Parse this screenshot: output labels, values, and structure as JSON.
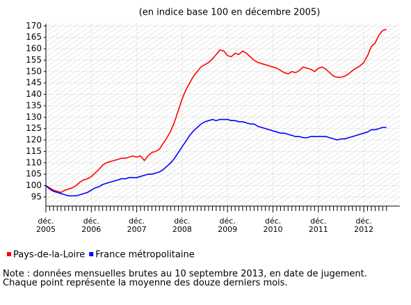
{
  "chart_data": {
    "type": "line",
    "title": "(en indice base 100 en décembre 2005)",
    "categories": [
      "déc. 2005",
      null,
      null,
      null,
      null,
      null,
      null,
      null,
      null,
      null,
      null,
      null,
      "déc. 2006",
      null,
      null,
      null,
      null,
      null,
      null,
      null,
      null,
      null,
      null,
      null,
      "déc. 2007",
      null,
      null,
      null,
      null,
      null,
      null,
      null,
      null,
      null,
      null,
      null,
      "déc. 2008",
      null,
      null,
      null,
      null,
      null,
      null,
      null,
      null,
      null,
      null,
      null,
      "déc. 2009",
      null,
      null,
      null,
      null,
      null,
      null,
      null,
      null,
      null,
      null,
      null,
      "déc. 2010",
      null,
      null,
      null,
      null,
      null,
      null,
      null,
      null,
      null,
      null,
      null,
      "déc. 2011",
      null,
      null,
      null,
      null,
      null,
      null,
      null,
      null,
      null,
      null,
      null,
      "déc. 2012",
      null,
      null,
      null,
      null,
      null,
      null
    ],
    "series": [
      {
        "name": "Pays-de-la-Loire",
        "color": "#ff0000",
        "values": [
          100,
          99,
          98,
          97.5,
          97,
          98,
          98.5,
          99,
          100,
          101.5,
          102.5,
          103,
          104,
          105.5,
          107,
          109,
          110,
          110.5,
          111,
          111.5,
          112,
          112,
          112.5,
          113,
          112.5,
          113,
          111,
          113,
          114.5,
          115,
          116,
          118.5,
          121,
          124,
          128,
          133,
          138,
          142,
          145,
          148,
          150,
          152,
          153,
          154,
          155.5,
          157.5,
          159.5,
          159,
          157,
          156.5,
          158,
          157.5,
          159,
          158,
          156.5,
          155,
          154,
          153.5,
          153,
          152.5,
          152,
          151.5,
          150.5,
          149.5,
          149,
          150,
          149.5,
          150.5,
          152,
          151.5,
          151,
          150,
          151.5,
          152,
          151,
          149.5,
          148,
          147.5,
          147.5,
          148,
          149,
          150.5,
          151.5,
          152.5,
          154,
          157,
          161,
          162.5,
          166,
          168,
          168.5
        ]
      },
      {
        "name": "France métropolitaine",
        "color": "#0000ff",
        "values": [
          100,
          98.5,
          97.5,
          97,
          96.5,
          96,
          95.5,
          95.5,
          95.5,
          96,
          96.5,
          97,
          98,
          99,
          99.5,
          100.5,
          101,
          101.5,
          102,
          102.5,
          103,
          103,
          103.5,
          103.5,
          103.5,
          104,
          104.5,
          105,
          105,
          105.5,
          106,
          107,
          108.5,
          110,
          112,
          114.5,
          117,
          119.5,
          122,
          124,
          125.5,
          127,
          128,
          128.5,
          129,
          128.5,
          129,
          129,
          129,
          128.5,
          128.5,
          128,
          128,
          127.5,
          127,
          127,
          126,
          125.5,
          125,
          124.5,
          124,
          123.5,
          123,
          123,
          122.5,
          122,
          121.5,
          121.5,
          121,
          121,
          121.5,
          121.5,
          121.5,
          121.5,
          121.5,
          121,
          120.5,
          120,
          120.5,
          120.5,
          121,
          121.5,
          122,
          122.5,
          123,
          123.5,
          124.5,
          124.5,
          125,
          125.5,
          125.5
        ]
      }
    ],
    "ylim": [
      91,
      171
    ],
    "yticks": [
      95,
      100,
      105,
      110,
      115,
      120,
      125,
      130,
      135,
      140,
      145,
      150,
      155,
      160,
      165,
      170
    ],
    "grid": true,
    "notes": [
      "Note : données mensuelles brutes au 10 septembre 2013, en date de jugement.",
      "Chaque point représente la moyenne des douze derniers mois."
    ]
  }
}
